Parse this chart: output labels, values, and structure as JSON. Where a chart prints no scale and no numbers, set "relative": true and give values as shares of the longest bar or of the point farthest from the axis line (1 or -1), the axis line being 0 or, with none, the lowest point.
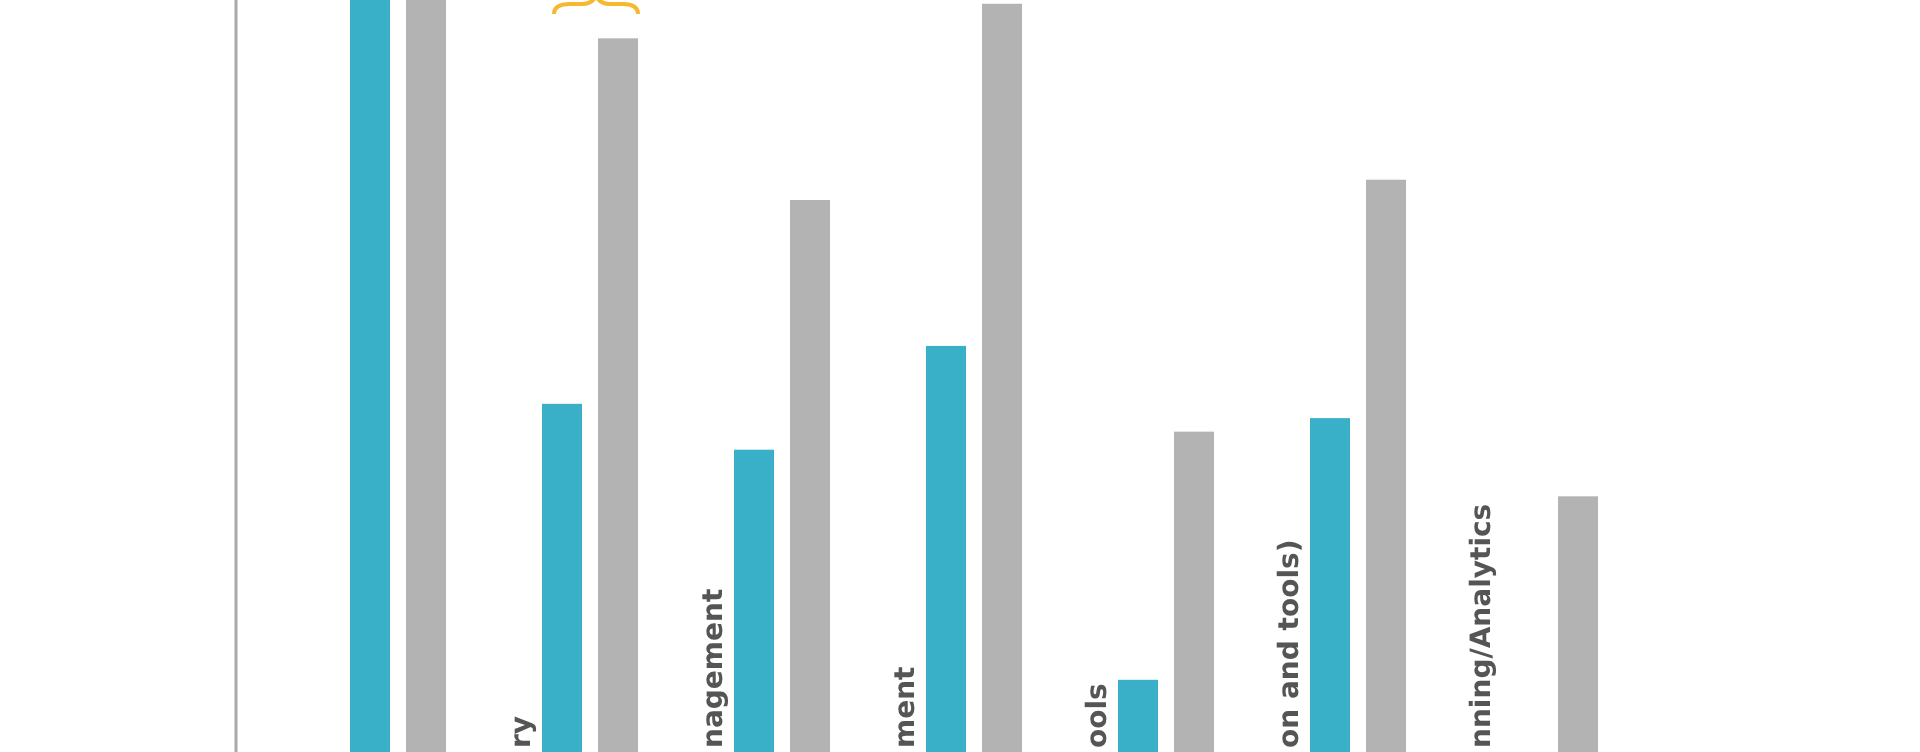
{
  "chart_data": {
    "type": "bar",
    "relative": true,
    "categories": [
      null,
      "ry",
      "nagement",
      "ment",
      "ools",
      "on and tools)",
      "nning/Analytics"
    ],
    "series": [
      {
        "color": "#3ab0c8",
        "values": [
          1,
          0.463,
          0.402,
          0.54,
          0.096,
          0.444,
          null
        ]
      },
      {
        "color": "#b3b3b3",
        "values": [
          1,
          0.949,
          0.734,
          0.995,
          0.426,
          0.761,
          0.34
        ]
      }
    ],
    "grid": false
  }
}
